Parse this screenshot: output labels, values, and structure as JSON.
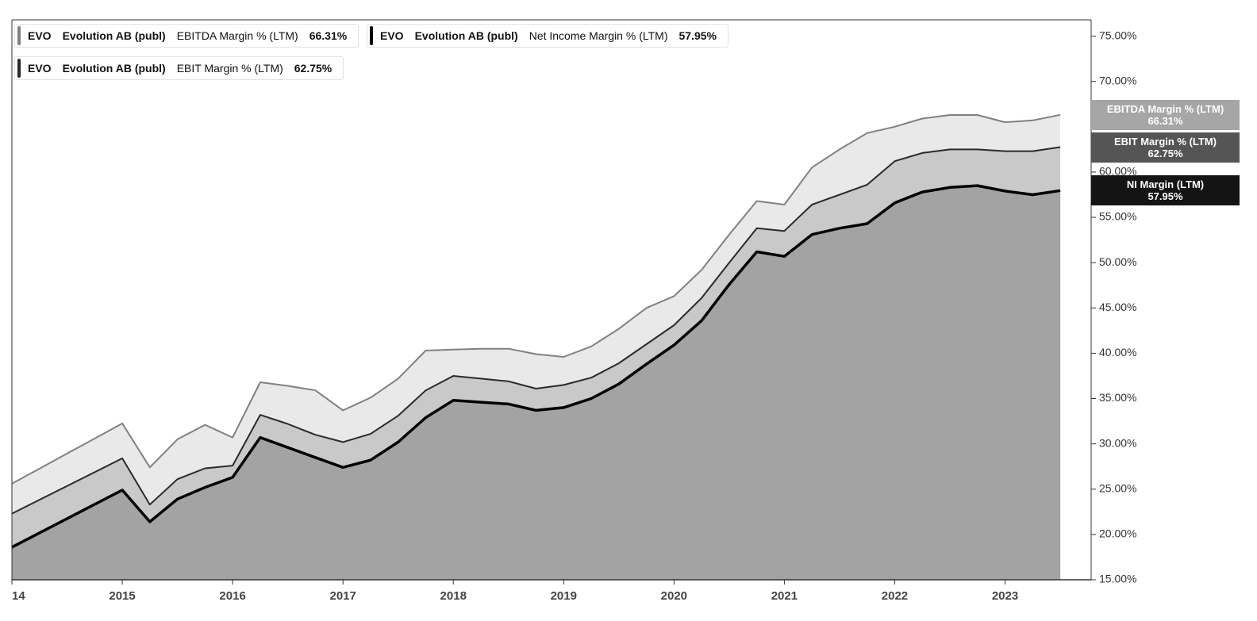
{
  "chart_data": {
    "type": "area",
    "ticker": "EVO",
    "company": "Evolution AB (publ)",
    "x": [
      2014,
      2015,
      2015.25,
      2015.5,
      2015.75,
      2016,
      2016.25,
      2016.5,
      2016.75,
      2017,
      2017.25,
      2017.5,
      2017.75,
      2018,
      2018.25,
      2018.5,
      2018.75,
      2019,
      2019.25,
      2019.5,
      2019.75,
      2020,
      2020.25,
      2020.5,
      2020.75,
      2021,
      2021.25,
      2021.5,
      2021.75,
      2022,
      2022.25,
      2022.5,
      2022.75,
      2023,
      2023.25,
      2023.5
    ],
    "series": [
      {
        "name": "EBITDA Margin % (LTM)",
        "color": "#808080",
        "fill": "#e9e9e9",
        "tag_color": "#a6a6a6",
        "value_label": "66.31%",
        "values": [
          25.6,
          32.25,
          27.4,
          30.5,
          32.1,
          30.7,
          36.8,
          36.4,
          35.9,
          33.7,
          35.1,
          37.2,
          40.3,
          40.4,
          40.5,
          40.5,
          39.9,
          39.6,
          40.75,
          42.7,
          45.0,
          46.3,
          49.2,
          53.1,
          56.8,
          56.4,
          60.5,
          62.5,
          64.3,
          65.0,
          65.9,
          66.3,
          66.3,
          65.5,
          65.7,
          66.31
        ]
      },
      {
        "name": "EBIT Margin % (LTM)",
        "color": "#2a2a2a",
        "fill": "#c9c9c9",
        "tag_color": "#555555",
        "value_label": "62.75%",
        "values": [
          22.3,
          28.4,
          23.3,
          26.1,
          27.3,
          27.6,
          33.2,
          32.2,
          31.0,
          30.2,
          31.1,
          33.1,
          35.9,
          37.5,
          37.2,
          36.9,
          36.1,
          36.5,
          37.3,
          38.9,
          41.0,
          43.1,
          46.1,
          50.0,
          53.8,
          53.5,
          56.4,
          57.5,
          58.6,
          61.2,
          62.1,
          62.5,
          62.5,
          62.3,
          62.3,
          62.75
        ]
      },
      {
        "name": "Net Income Margin % (LTM)",
        "tag_name": "NI Margin (LTM)",
        "color": "#000000",
        "fill": "#a3a3a3",
        "tag_color": "#141414",
        "value_label": "57.95%",
        "values": [
          18.6,
          24.9,
          21.4,
          23.9,
          25.2,
          26.3,
          30.7,
          29.6,
          28.5,
          27.4,
          28.2,
          30.2,
          32.9,
          34.8,
          34.6,
          34.4,
          33.7,
          34.0,
          35.0,
          36.6,
          38.8,
          40.9,
          43.6,
          47.6,
          51.2,
          50.7,
          53.1,
          53.8,
          54.3,
          56.6,
          57.8,
          58.3,
          58.5,
          57.9,
          57.5,
          57.95
        ]
      }
    ],
    "xlim": [
      2014,
      2023.78
    ],
    "xticks": [
      {
        "value": 2014,
        "label": "14"
      },
      2015,
      2016,
      2017,
      2018,
      2019,
      2020,
      2021,
      2022,
      2023
    ],
    "ylim": [
      15,
      76.8
    ],
    "yticks": [
      {
        "value": 15,
        "label": "15.00%"
      },
      {
        "value": 20,
        "label": "20.00%"
      },
      {
        "value": 25,
        "label": "25.00%"
      },
      {
        "value": 30,
        "label": "30.00%"
      },
      {
        "value": 35,
        "label": "35.00%"
      },
      {
        "value": 40,
        "label": "40.00%"
      },
      {
        "value": 45,
        "label": "45.00%"
      },
      {
        "value": 50,
        "label": "50.00%"
      },
      {
        "value": 55,
        "label": "55.00%"
      },
      {
        "value": 60,
        "label": "60.00%"
      },
      {
        "value": 65,
        "label": "65.00%"
      },
      {
        "value": 70,
        "label": "70.00%"
      },
      {
        "value": 75,
        "label": "75.00%"
      }
    ],
    "y_axis_side": "right"
  }
}
